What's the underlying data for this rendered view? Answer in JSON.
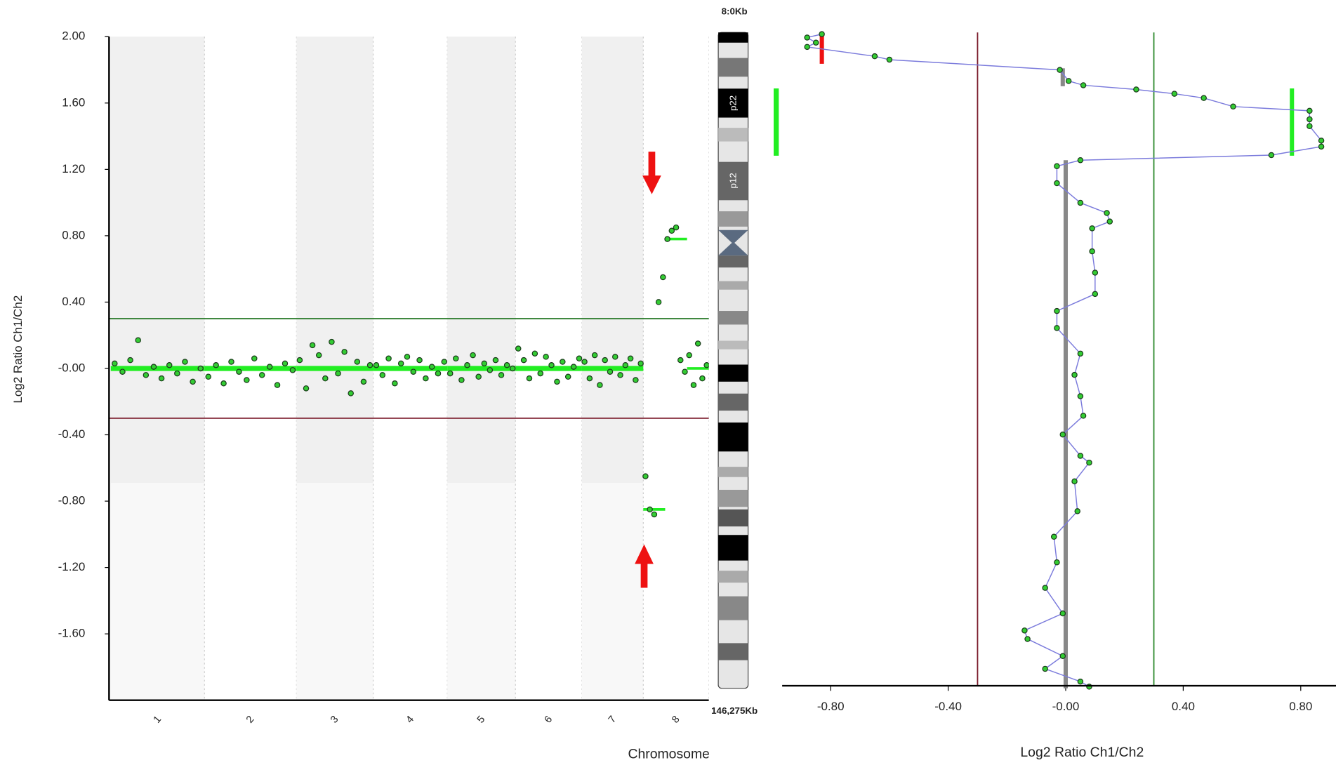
{
  "chart_data": [
    {
      "type": "scatter",
      "ylabel": "Log2 Ratio Ch1/Ch2",
      "xlabel": "Chromosome",
      "categories": [
        "1",
        "2",
        "3",
        "4",
        "5",
        "6",
        "7",
        "8"
      ],
      "ylim": [
        -2,
        2
      ],
      "yticks": [
        {
          "value": 2,
          "label": "2.00"
        },
        {
          "value": 1.6,
          "label": "1.60"
        },
        {
          "value": 1.2,
          "label": "1.20"
        },
        {
          "value": 0.8,
          "label": "0.80"
        },
        {
          "value": 0.4,
          "label": "0.40"
        },
        {
          "value": 0,
          "label": "-0.00"
        },
        {
          "value": -0.4,
          "label": "-0.40"
        },
        {
          "value": -0.8,
          "label": "-0.80"
        },
        {
          "value": -1.2,
          "label": "-1.20"
        },
        {
          "value": -1.6,
          "label": "-1.60"
        }
      ],
      "color": "#33cc33",
      "segment_color": "#22ee22",
      "values": [
        [
          0.03,
          -0.02,
          0.05,
          0.17,
          -0.04,
          0.01,
          -0.06,
          0.02,
          -0.03,
          0.04,
          -0.08,
          0.0
        ],
        [
          -0.05,
          0.02,
          -0.09,
          0.04,
          -0.02,
          -0.07,
          0.06,
          -0.04,
          0.01,
          -0.1,
          0.03,
          -0.01
        ],
        [
          0.05,
          -0.12,
          0.14,
          0.08,
          -0.06,
          0.16,
          -0.03,
          0.1,
          -0.15,
          0.04,
          -0.08,
          0.02
        ],
        [
          0.02,
          -0.04,
          0.06,
          -0.09,
          0.03,
          0.07,
          -0.02,
          0.05,
          -0.06,
          0.01,
          -0.03,
          0.04
        ],
        [
          -0.03,
          0.06,
          -0.07,
          0.02,
          0.08,
          -0.05,
          0.03,
          -0.01,
          0.05,
          -0.04,
          0.02,
          0.0
        ],
        [
          0.12,
          0.05,
          -0.06,
          0.09,
          -0.03,
          0.07,
          0.02,
          -0.08,
          0.04,
          -0.05,
          0.01,
          0.06
        ],
        [
          0.04,
          -0.06,
          0.08,
          -0.1,
          0.05,
          -0.02,
          0.07,
          -0.04,
          0.02,
          0.06,
          -0.07,
          0.03
        ],
        [
          -0.65,
          -0.85,
          -0.88,
          0.4,
          0.55,
          0.78,
          0.83,
          0.85,
          0.05,
          -0.02,
          0.08,
          -0.1,
          0.15,
          -0.06,
          0.02
        ]
      ],
      "segment_values": [
        [
          0
        ],
        [
          0
        ],
        [
          0
        ],
        [
          0
        ],
        [
          0
        ],
        [
          0
        ],
        [
          0
        ],
        [
          -0.85,
          0.78,
          0
        ]
      ],
      "thresholds": [
        {
          "value": 0.3,
          "color": "#2e7d2e"
        },
        {
          "value": -0.3,
          "color": "#7a1a2a"
        }
      ]
    },
    {
      "type": "line",
      "orientation": "vertical",
      "xlabel": "Log2 Ratio Ch1/Ch2",
      "band_labels": [
        "p22",
        "p12"
      ],
      "xlim": [
        -0.965,
        0.92
      ],
      "xticks": [
        {
          "value": -0.8,
          "label": "-0.80"
        },
        {
          "value": -0.4,
          "label": "-0.40"
        },
        {
          "value": 0,
          "label": "-0.00"
        },
        {
          "value": 0.4,
          "label": "0.40"
        },
        {
          "value": 0.8,
          "label": "0.80"
        }
      ],
      "ylim": [
        0,
        146275
      ],
      "yticks": [
        {
          "value": 0,
          "label": "8:0Kb"
        },
        {
          "value": 146275,
          "label": "146,275Kb"
        }
      ],
      "color": "#33cc33",
      "line_color": "#7b7bdc",
      "x": [
        380,
        1140,
        2280,
        3230,
        5320,
        6080,
        8360,
        10830,
        11780,
        12730,
        13680,
        14630,
        16530,
        17480,
        19380,
        20900,
        24130,
        25460,
        27360,
        28500,
        29830,
        33630,
        38000,
        40280,
        42180,
        43700,
        48830,
        53580,
        58330,
        62130,
        65930,
        71630,
        76380,
        81130,
        85500,
        89680,
        94430,
        95950,
        100130,
        106780,
        112480,
        118180,
        123880,
        129580,
        133380,
        135280,
        139080,
        141930,
        144780,
        145920
      ],
      "values": [
        -0.83,
        -0.88,
        -0.85,
        -0.88,
        -0.65,
        -0.6,
        -0.02,
        0.01,
        0.06,
        0.24,
        0.37,
        0.47,
        0.57,
        0.83,
        0.83,
        0.83,
        0.87,
        0.87,
        0.7,
        0.05,
        -0.03,
        -0.03,
        0.05,
        0.14,
        0.15,
        0.09,
        0.09,
        0.1,
        0.1,
        -0.03,
        -0.03,
        0.05,
        0.03,
        0.05,
        0.06,
        -0.01,
        0.05,
        0.08,
        0.03,
        0.04,
        -0.04,
        -0.03,
        -0.07,
        -0.01,
        -0.14,
        -0.13,
        -0.01,
        -0.07,
        0.05,
        0.08
      ],
      "segments": [
        {
          "value": -0.83,
          "start": 0,
          "end": 7000,
          "color": "#ee1111"
        },
        {
          "value": -0.01,
          "start": 8000,
          "end": 12000,
          "color": "#888888"
        },
        {
          "value": 0.77,
          "start": 12500,
          "end": 27500,
          "color": "#22ee22"
        },
        {
          "value": 0,
          "start": 28500,
          "end": 146275,
          "color": "#888888"
        }
      ],
      "thresholds": [
        {
          "value": -0.3,
          "color": "#7a1a2a"
        },
        {
          "value": 0.3,
          "color": "#2e8b2e"
        }
      ]
    }
  ]
}
